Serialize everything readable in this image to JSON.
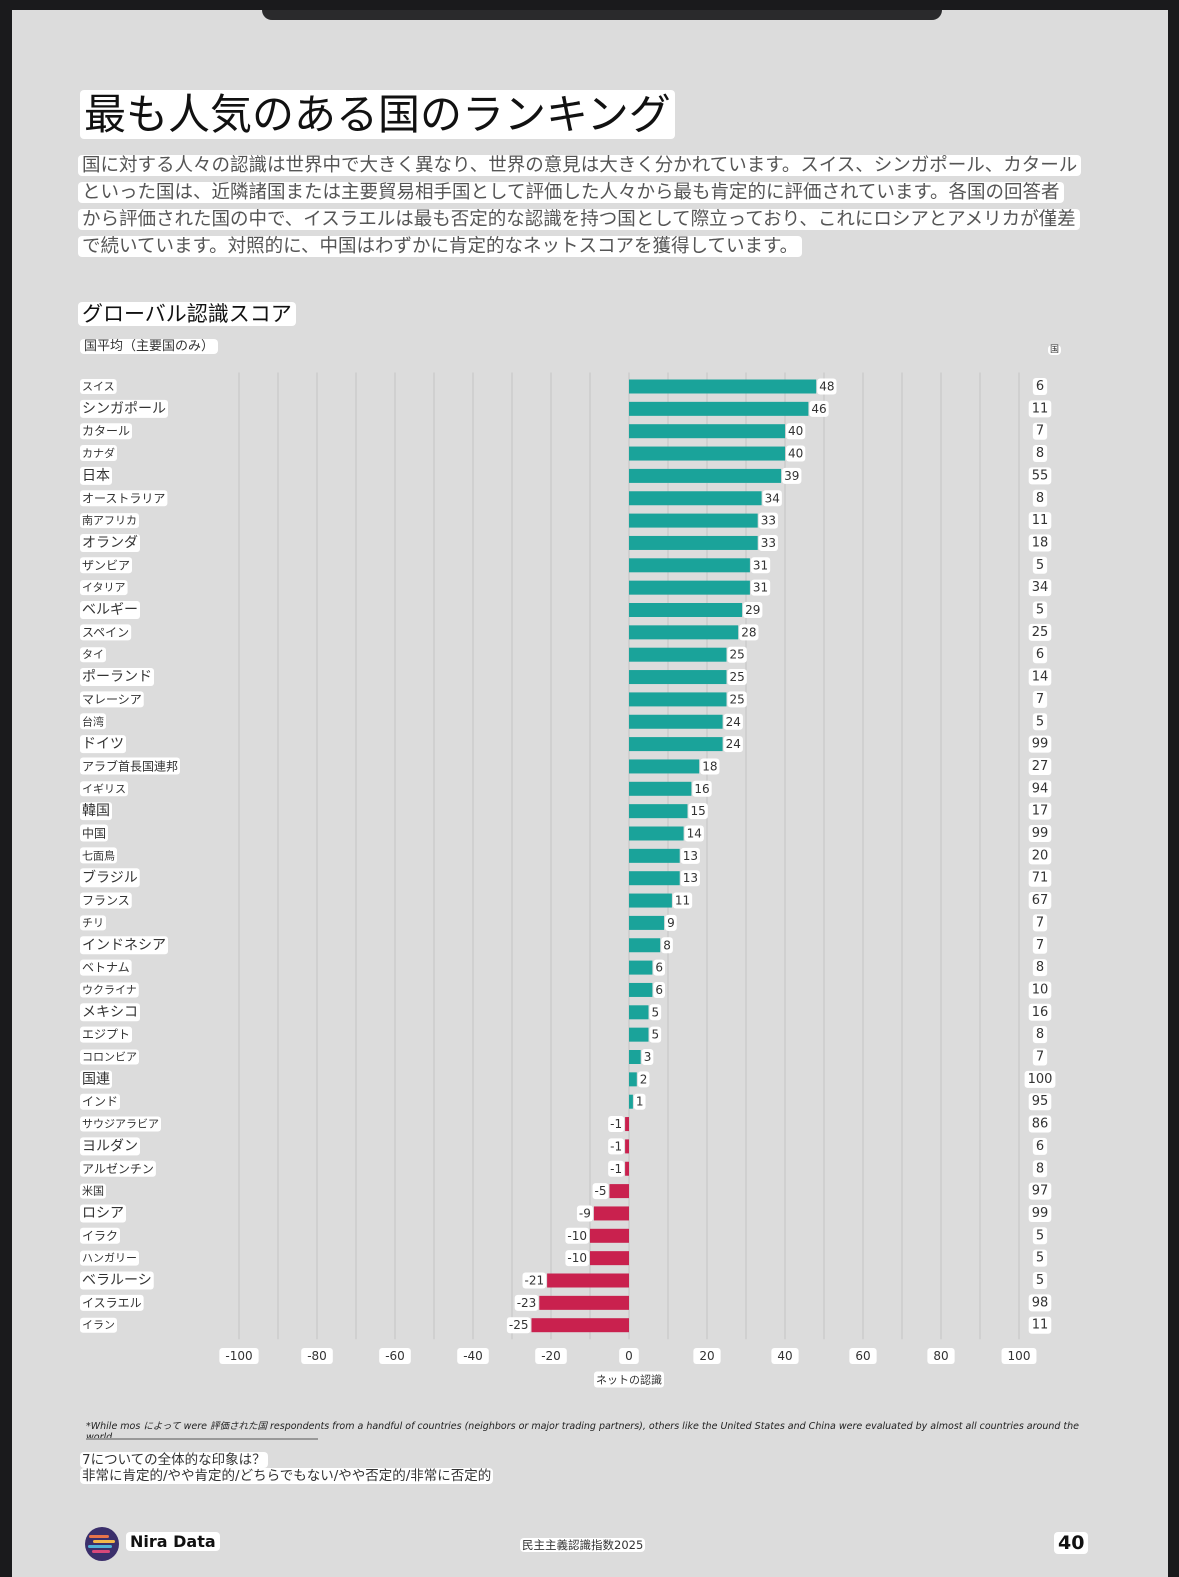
{
  "title": "最も人気のある国のランキング",
  "intro": "国に対する人々の認識は世界中で大きく異なり、世界の意見は大きく分かれています。スイス、シンガポール、カタールといった国は、近隣諸国または主要貿易相手国として評価した人々から最も肯定的に評価されています。各国の回答者から評価された国の中で、イスラエルは最も否定的な認識を持つ国として際立っており、これにロシアとアメリカが僅差で続いています。対照的に、中国はわずかに肯定的なネットスコアを獲得しています。",
  "chart_data": {
    "type": "bar",
    "orientation": "horizontal",
    "title": "グローバル認識スコア",
    "subtitle": "国平均（主要国のみ）",
    "xlabel": "ネットの認識",
    "count_header": "国",
    "xlim": [
      -100,
      100
    ],
    "xticks": [
      "-100",
      "-80",
      "-60",
      "-40",
      "-20",
      "0",
      "20",
      "40",
      "60",
      "80",
      "100"
    ],
    "grid": true,
    "positive_color": "#1aa39a",
    "negative_color": "#c9214e",
    "categories": [
      "スイス",
      "シンガポール",
      "カタール",
      "カナダ",
      "日本",
      "オーストラリア",
      "南アフリカ",
      "オランダ",
      "ザンビア",
      "イタリア",
      "ベルギー",
      "スペイン",
      "タイ",
      "ポーランド",
      "マレーシア",
      "台湾",
      "ドイツ",
      "アラブ首長国連邦",
      "イギリス",
      "韓国",
      "中国",
      "七面鳥",
      "ブラジル",
      "フランス",
      "チリ",
      "インドネシア",
      "ベトナム",
      "ウクライナ",
      "メキシコ",
      "エジプト",
      "コロンビア",
      "国連",
      "インド",
      "サウジアラビア",
      "ヨルダン",
      "アルゼンチン",
      "米国",
      "ロシア",
      "イラク",
      "ハンガリー",
      "ベラルーシ",
      "イスラエル",
      "イラン"
    ],
    "values": [
      48,
      46,
      40,
      40,
      39,
      34,
      33,
      33,
      31,
      31,
      29,
      28,
      25,
      25,
      25,
      24,
      24,
      18,
      16,
      15,
      14,
      13,
      13,
      11,
      9,
      8,
      6,
      6,
      5,
      5,
      3,
      2,
      1,
      -1,
      -1,
      -1,
      -5,
      -9,
      -10,
      -10,
      -21,
      -23,
      -25
    ],
    "counts": [
      6,
      11,
      7,
      8,
      55,
      8,
      11,
      18,
      5,
      34,
      5,
      25,
      6,
      14,
      7,
      5,
      99,
      27,
      94,
      17,
      99,
      20,
      71,
      67,
      7,
      7,
      8,
      10,
      16,
      8,
      7,
      100,
      95,
      86,
      6,
      8,
      97,
      99,
      5,
      5,
      5,
      98,
      11
    ]
  },
  "footnote": "*While mos によって were 評価された国 respondents from a handful of countries (neighbors or major trading partners), others like the United States and China were evaluated by almost all countries around the world.",
  "question": "7についての全体的な印象は？",
  "answer_scale": "非常に肯定的/やや肯定的/どちらでもない/やや否定的/非常に否定的",
  "footer": {
    "brand": "Nira Data",
    "report": "民主主義認識指数2025",
    "page": "40"
  }
}
